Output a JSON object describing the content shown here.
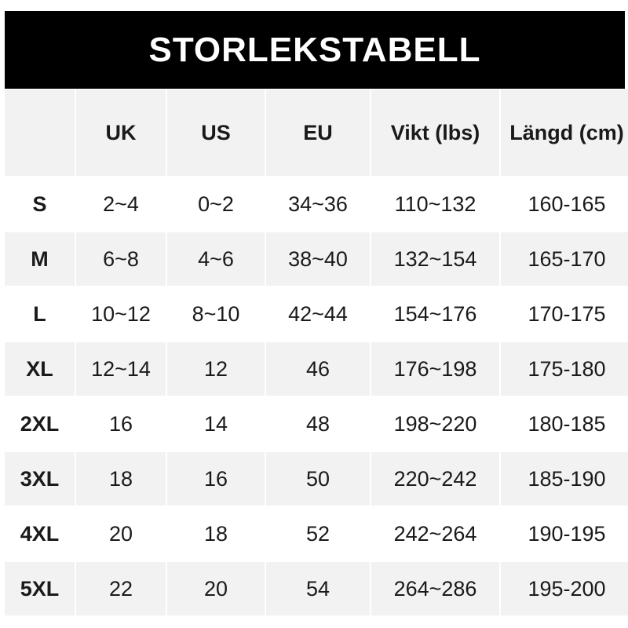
{
  "title": "STORLEKSTABELL",
  "colors": {
    "banner": "#000000",
    "stripe": "#f2f2f2"
  },
  "headers": [
    "",
    "UK",
    "US",
    "EU",
    "Vikt (lbs)",
    "Längd (cm)"
  ],
  "rows": [
    [
      "S",
      "2~4",
      "0~2",
      "34~36",
      "110~132",
      "160-165"
    ],
    [
      "M",
      "6~8",
      "4~6",
      "38~40",
      "132~154",
      "165-170"
    ],
    [
      "L",
      "10~12",
      "8~10",
      "42~44",
      "154~176",
      "170-175"
    ],
    [
      "XL",
      "12~14",
      "12",
      "46",
      "176~198",
      "175-180"
    ],
    [
      "2XL",
      "16",
      "14",
      "48",
      "198~220",
      "180-185"
    ],
    [
      "3XL",
      "18",
      "16",
      "50",
      "220~242",
      "185-190"
    ],
    [
      "4XL",
      "20",
      "18",
      "52",
      "242~264",
      "190-195"
    ],
    [
      "5XL",
      "22",
      "20",
      "54",
      "264~286",
      "195-200"
    ]
  ]
}
